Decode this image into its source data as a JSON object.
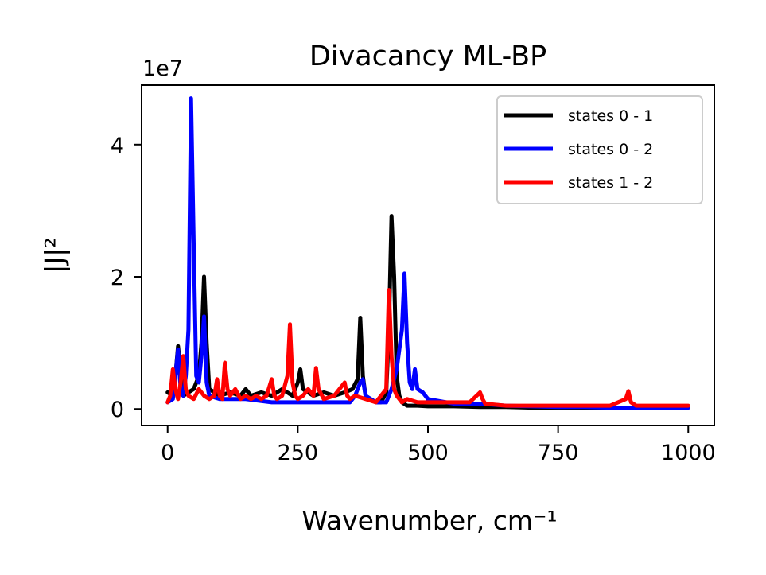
{
  "chart_data": {
    "type": "line",
    "title": "Divacancy ML-BP",
    "xlabel": "Wavenumber, cm⁻¹",
    "ylabel": "|J|²",
    "offset_label": "1e7",
    "xlim": [
      -50,
      1050
    ],
    "ylim": [
      -0.25,
      4.9
    ],
    "y_scale_multiplier": 10000000,
    "x_ticks": [
      0,
      250,
      500,
      750,
      1000
    ],
    "x_tick_labels": [
      "0",
      "250",
      "500",
      "750",
      "1000"
    ],
    "y_ticks": [
      0,
      2,
      4
    ],
    "y_tick_labels": [
      "0",
      "2",
      "4"
    ],
    "grid": false,
    "legend_position": "top-right",
    "series": [
      {
        "name": "states 0 - 1",
        "color": "#000000",
        "x": [
          0,
          10,
          15,
          20,
          25,
          30,
          40,
          50,
          60,
          65,
          70,
          75,
          80,
          90,
          100,
          120,
          140,
          150,
          160,
          180,
          200,
          220,
          240,
          250,
          255,
          260,
          280,
          300,
          320,
          340,
          355,
          365,
          370,
          375,
          380,
          390,
          400,
          410,
          420,
          425,
          430,
          435,
          440,
          445,
          450,
          460,
          480,
          500,
          550,
          600,
          650,
          700,
          750,
          800,
          850,
          900,
          950,
          1000
        ],
        "y": [
          0.25,
          0.2,
          0.5,
          0.95,
          0.6,
          0.2,
          0.25,
          0.3,
          0.5,
          1.0,
          2.0,
          1.0,
          0.3,
          0.25,
          0.2,
          0.25,
          0.2,
          0.3,
          0.2,
          0.25,
          0.2,
          0.3,
          0.2,
          0.4,
          0.6,
          0.3,
          0.2,
          0.25,
          0.2,
          0.25,
          0.3,
          0.45,
          1.38,
          0.5,
          0.2,
          0.15,
          0.1,
          0.1,
          0.25,
          1.2,
          2.92,
          2.0,
          0.5,
          0.2,
          0.1,
          0.05,
          0.05,
          0.04,
          0.04,
          0.03,
          0.03,
          0.02,
          0.02,
          0.02,
          0.02,
          0.02,
          0.02,
          0.02
        ]
      },
      {
        "name": "states 0 - 2",
        "color": "#0000ff",
        "x": [
          0,
          10,
          15,
          20,
          25,
          30,
          35,
          40,
          45,
          50,
          55,
          60,
          65,
          70,
          75,
          80,
          100,
          150,
          200,
          250,
          300,
          350,
          360,
          370,
          375,
          380,
          400,
          420,
          430,
          440,
          450,
          455,
          460,
          465,
          470,
          475,
          480,
          490,
          500,
          550,
          600,
          650,
          700,
          750,
          800,
          850,
          900,
          950,
          1000
        ],
        "y": [
          0.1,
          0.15,
          0.5,
          0.9,
          0.3,
          0.2,
          0.5,
          1.2,
          4.7,
          2.5,
          0.5,
          0.4,
          0.8,
          1.4,
          0.4,
          0.2,
          0.15,
          0.15,
          0.1,
          0.1,
          0.1,
          0.1,
          0.2,
          0.4,
          0.45,
          0.2,
          0.1,
          0.1,
          0.3,
          0.6,
          1.2,
          2.05,
          1.0,
          0.4,
          0.3,
          0.6,
          0.3,
          0.25,
          0.15,
          0.08,
          0.08,
          0.05,
          0.04,
          0.03,
          0.03,
          0.02,
          0.02,
          0.02,
          0.02
        ]
      },
      {
        "name": "states 1 - 2",
        "color": "#ff0000",
        "x": [
          0,
          5,
          10,
          15,
          20,
          25,
          30,
          35,
          40,
          50,
          60,
          70,
          80,
          90,
          95,
          100,
          105,
          110,
          115,
          120,
          130,
          140,
          150,
          160,
          170,
          180,
          190,
          200,
          205,
          210,
          220,
          230,
          235,
          240,
          245,
          250,
          260,
          270,
          280,
          285,
          290,
          300,
          320,
          330,
          340,
          345,
          350,
          360,
          380,
          400,
          420,
          425,
          430,
          435,
          440,
          450,
          460,
          480,
          500,
          550,
          580,
          600,
          605,
          610,
          650,
          700,
          750,
          800,
          850,
          880,
          885,
          890,
          900,
          950,
          1000
        ],
        "y": [
          0.1,
          0.2,
          0.6,
          0.3,
          0.15,
          0.4,
          0.8,
          0.3,
          0.2,
          0.15,
          0.3,
          0.2,
          0.15,
          0.2,
          0.45,
          0.2,
          0.15,
          0.7,
          0.3,
          0.2,
          0.3,
          0.15,
          0.2,
          0.15,
          0.2,
          0.15,
          0.2,
          0.45,
          0.2,
          0.15,
          0.2,
          0.5,
          1.28,
          0.4,
          0.2,
          0.15,
          0.2,
          0.3,
          0.2,
          0.62,
          0.3,
          0.15,
          0.2,
          0.3,
          0.4,
          0.2,
          0.15,
          0.2,
          0.15,
          0.1,
          0.3,
          1.8,
          0.8,
          0.3,
          0.2,
          0.1,
          0.15,
          0.1,
          0.1,
          0.1,
          0.1,
          0.25,
          0.15,
          0.08,
          0.05,
          0.05,
          0.05,
          0.05,
          0.05,
          0.15,
          0.27,
          0.1,
          0.05,
          0.05,
          0.05
        ]
      }
    ]
  }
}
